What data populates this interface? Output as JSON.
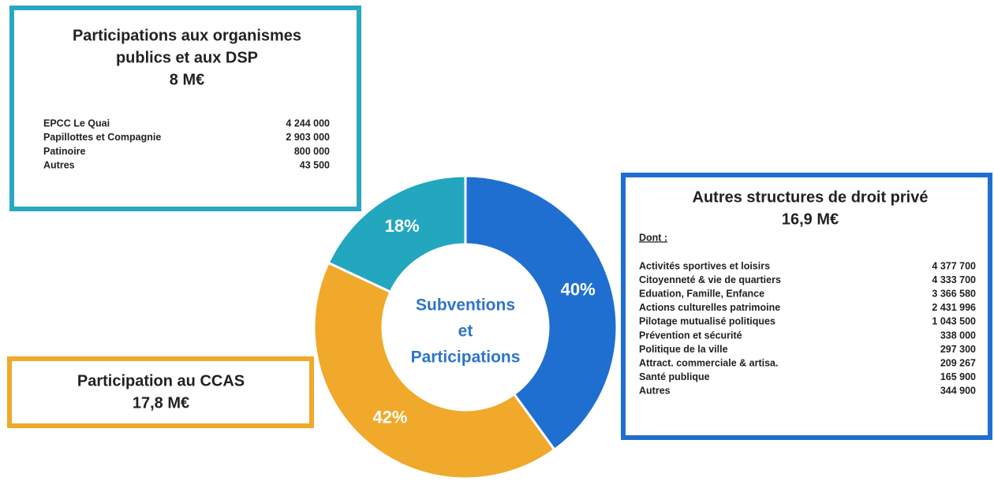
{
  "chart_data": {
    "type": "donut",
    "center_label": [
      "Subventions",
      "et",
      "Participations"
    ],
    "values": [
      40,
      42,
      18
    ],
    "value_labels": [
      "40%",
      "42%",
      "18%"
    ],
    "colors": [
      "#1f6fd1",
      "#f0a92a",
      "#22a7bf"
    ]
  },
  "boxes": {
    "dsp": {
      "title": [
        "Participations aux organismes",
        "publics et aux DSP",
        "8 M€"
      ],
      "rows": [
        [
          "EPCC Le Quai",
          "4 244 000"
        ],
        [
          "Papillottes et Compagnie",
          "2 903 000"
        ],
        [
          "Patinoire",
          "800 000"
        ],
        [
          "Autres",
          "43 500"
        ]
      ]
    },
    "ccas": {
      "title": [
        "Participation au CCAS",
        "17,8 M€"
      ]
    },
    "prive": {
      "title": [
        "Autres structures de droit privé",
        "16,9 M€"
      ],
      "subtitle": "Dont :",
      "rows": [
        [
          "Activités sportives et loisirs",
          "4 377 700"
        ],
        [
          "Citoyenneté & vie de quartiers",
          "4 333 700"
        ],
        [
          "Eduation, Famille, Enfance",
          "3 366 580"
        ],
        [
          "Actions culturelles patrimoine",
          "2 431 996"
        ],
        [
          "Pilotage mutualisé politiques",
          "1 043 500"
        ],
        [
          "Prévention et sécurité",
          "338 000"
        ],
        [
          "Politique de la ville",
          "297 300"
        ],
        [
          "Attract. commerciale & artisa.",
          "209 267"
        ],
        [
          "Santé publique",
          "165 900"
        ],
        [
          "Autres",
          "344 900"
        ]
      ]
    }
  }
}
